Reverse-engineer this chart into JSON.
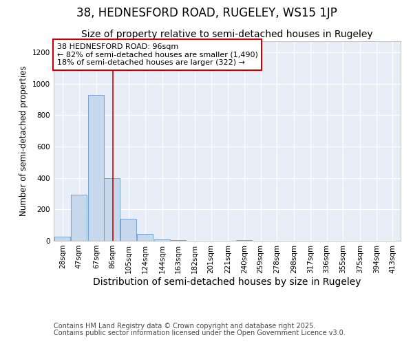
{
  "title_line1": "38, HEDNESFORD ROAD, RUGELEY, WS15 1JP",
  "title_line2": "Size of property relative to semi-detached houses in Rugeley",
  "xlabel": "Distribution of semi-detached houses by size in Rugeley",
  "ylabel": "Number of semi-detached properties",
  "footer_line1": "Contains HM Land Registry data © Crown copyright and database right 2025.",
  "footer_line2": "Contains public sector information licensed under the Open Government Licence v3.0.",
  "annotation_title": "38 HEDNESFORD ROAD: 96sqm",
  "annotation_line1": "← 82% of semi-detached houses are smaller (1,490)",
  "annotation_line2": "18% of semi-detached houses are larger (322) →",
  "bar_edges": [
    28,
    47,
    67,
    86,
    105,
    124,
    144,
    163,
    182,
    201,
    221,
    240,
    259,
    278,
    298,
    317,
    336,
    355,
    375,
    394,
    413
  ],
  "bar_values": [
    28,
    295,
    930,
    400,
    140,
    42,
    10,
    5,
    0,
    0,
    0,
    5,
    0,
    0,
    0,
    0,
    0,
    0,
    0,
    0,
    0
  ],
  "bar_color": "#c8d8ec",
  "bar_edgecolor": "#6699cc",
  "red_line_x": 96,
  "ylim": [
    0,
    1270
  ],
  "yticks": [
    0,
    200,
    400,
    600,
    800,
    1000,
    1200
  ],
  "fig_bg_color": "#ffffff",
  "plot_bg_color": "#e8eef8",
  "grid_color": "#ffffff",
  "annotation_box_facecolor": "#ffffff",
  "annotation_box_edgecolor": "#cc0000",
  "red_line_color": "#cc0000",
  "title_fontsize": 12,
  "subtitle_fontsize": 10,
  "xlabel_fontsize": 10,
  "ylabel_fontsize": 8.5,
  "tick_fontsize": 7.5,
  "annotation_fontsize": 8,
  "footer_fontsize": 7
}
